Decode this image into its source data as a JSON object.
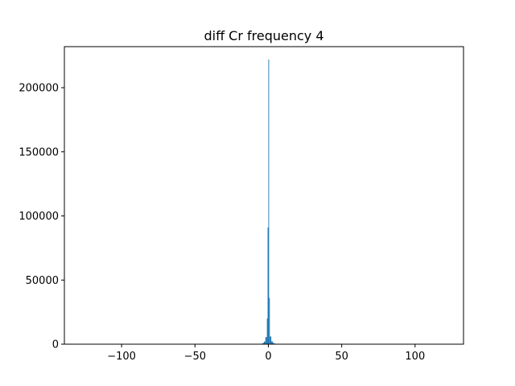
{
  "chart_data": {
    "type": "bar",
    "title": "diff Cr frequency 4",
    "xlabel": "",
    "ylabel": "",
    "xlim": [
      -139,
      133
    ],
    "ylim": [
      0,
      232000
    ],
    "xticks": [
      -100,
      -50,
      0,
      50,
      100
    ],
    "xtick_labels": [
      "−100",
      "−50",
      "0",
      "50",
      "100"
    ],
    "yticks": [
      0,
      50000,
      100000,
      150000,
      200000
    ],
    "ytick_labels": [
      "0",
      "50000",
      "100000",
      "150000",
      "200000"
    ],
    "bar_color": "#1f77b4",
    "bins": [
      {
        "x0": -5,
        "x1": -4,
        "value": 300
      },
      {
        "x0": -4,
        "x1": -3,
        "value": 900
      },
      {
        "x0": -3,
        "x1": -2,
        "value": 2000
      },
      {
        "x0": -2,
        "x1": -1,
        "value": 5500
      },
      {
        "x0": -1,
        "x1": -0.5,
        "value": 20000
      },
      {
        "x0": -0.5,
        "x1": 0,
        "value": 91000
      },
      {
        "x0": 0,
        "x1": 0.5,
        "value": 222000
      },
      {
        "x0": 0.5,
        "x1": 1,
        "value": 36000
      },
      {
        "x0": 1,
        "x1": 2,
        "value": 6000
      },
      {
        "x0": 2,
        "x1": 3,
        "value": 2200
      },
      {
        "x0": 3,
        "x1": 4,
        "value": 1000
      },
      {
        "x0": 4,
        "x1": 5,
        "value": 400
      },
      {
        "x0": 5,
        "x1": 7,
        "value": 150
      }
    ]
  }
}
